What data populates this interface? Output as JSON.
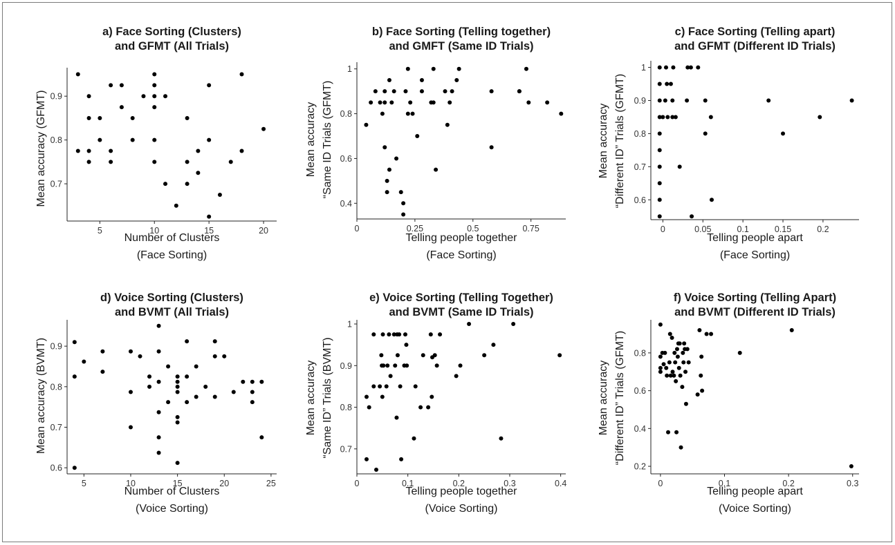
{
  "chart_data": [
    {
      "id": "a",
      "type": "scatter",
      "title": [
        "a) Face Sorting (Clusters)",
        "and GFMT (All Trials)"
      ],
      "xlabel": [
        "Number of Clusters",
        "(Face Sorting)"
      ],
      "ylabel": [
        "Mean accuracy (GFMT)"
      ],
      "xlim": [
        2,
        21.2
      ],
      "ylim": [
        0.615,
        0.965
      ],
      "xticks": [
        5,
        10,
        15,
        20
      ],
      "yticks": [
        0.7,
        0.8,
        0.9
      ],
      "tick_labels_x": [
        "5",
        "10",
        "15",
        "20"
      ],
      "tick_labels_y": [
        "0.7",
        "0.8",
        "0.9"
      ],
      "points": [
        [
          3,
          0.95
        ],
        [
          3,
          0.775
        ],
        [
          4,
          0.9
        ],
        [
          4,
          0.85
        ],
        [
          4,
          0.775
        ],
        [
          4,
          0.75
        ],
        [
          5,
          0.85
        ],
        [
          5,
          0.8
        ],
        [
          6,
          0.925
        ],
        [
          6,
          0.775
        ],
        [
          6,
          0.75
        ],
        [
          7,
          0.925
        ],
        [
          7,
          0.875
        ],
        [
          8,
          0.85
        ],
        [
          8,
          0.8
        ],
        [
          9,
          0.9
        ],
        [
          10,
          0.95
        ],
        [
          10,
          0.925
        ],
        [
          10,
          0.9
        ],
        [
          10,
          0.875
        ],
        [
          10,
          0.8
        ],
        [
          10,
          0.75
        ],
        [
          11,
          0.9
        ],
        [
          11,
          0.7
        ],
        [
          12,
          0.65
        ],
        [
          13,
          0.85
        ],
        [
          13,
          0.75
        ],
        [
          13,
          0.7
        ],
        [
          14,
          0.775
        ],
        [
          14,
          0.725
        ],
        [
          15,
          0.925
        ],
        [
          15,
          0.8
        ],
        [
          15,
          0.625
        ],
        [
          16,
          0.675
        ],
        [
          17,
          0.75
        ],
        [
          18,
          0.95
        ],
        [
          18,
          0.775
        ],
        [
          20,
          0.825
        ]
      ]
    },
    {
      "id": "b",
      "type": "scatter",
      "title": [
        "b) Face Sorting (Telling together)",
        "and GMFT (Same ID Trials)"
      ],
      "xlabel": [
        "Telling people together",
        "(Face Sorting)"
      ],
      "ylabel": [
        "Mean accuracy",
        "“Same ID Trials (GFMT)"
      ],
      "xlim": [
        0,
        0.9
      ],
      "ylim": [
        0.33,
        1.03
      ],
      "xticks": [
        0,
        0.25,
        0.5,
        0.75
      ],
      "yticks": [
        0.4,
        0.6,
        0.8,
        1.0
      ],
      "tick_labels_x": [
        "0",
        "0.25",
        "0.5",
        "0.75"
      ],
      "tick_labels_y": [
        "0.4",
        "0.6",
        "0.8",
        "1"
      ],
      "points": [
        [
          0.04,
          0.75
        ],
        [
          0.06,
          0.85
        ],
        [
          0.08,
          0.9
        ],
        [
          0.1,
          0.85
        ],
        [
          0.11,
          0.8
        ],
        [
          0.12,
          0.85
        ],
        [
          0.12,
          0.9
        ],
        [
          0.12,
          0.65
        ],
        [
          0.13,
          0.45
        ],
        [
          0.13,
          0.5
        ],
        [
          0.14,
          0.55
        ],
        [
          0.14,
          0.95
        ],
        [
          0.15,
          0.85
        ],
        [
          0.16,
          0.9
        ],
        [
          0.17,
          0.6
        ],
        [
          0.19,
          0.45
        ],
        [
          0.2,
          0.4
        ],
        [
          0.2,
          0.35
        ],
        [
          0.21,
          0.9
        ],
        [
          0.22,
          1.0
        ],
        [
          0.22,
          0.8
        ],
        [
          0.23,
          0.85
        ],
        [
          0.24,
          0.8
        ],
        [
          0.26,
          0.7
        ],
        [
          0.28,
          0.95
        ],
        [
          0.28,
          0.9
        ],
        [
          0.32,
          0.85
        ],
        [
          0.33,
          1.0
        ],
        [
          0.33,
          0.85
        ],
        [
          0.34,
          0.55
        ],
        [
          0.38,
          0.9
        ],
        [
          0.39,
          0.75
        ],
        [
          0.4,
          0.85
        ],
        [
          0.41,
          0.9
        ],
        [
          0.43,
          0.95
        ],
        [
          0.44,
          1.0
        ],
        [
          0.58,
          0.9
        ],
        [
          0.58,
          0.65
        ],
        [
          0.7,
          0.9
        ],
        [
          0.7,
          0.9
        ],
        [
          0.73,
          1.0
        ],
        [
          0.74,
          0.85
        ],
        [
          0.82,
          0.85
        ],
        [
          0.88,
          0.8
        ]
      ]
    },
    {
      "id": "c",
      "type": "scatter",
      "title": [
        "c) Face Sorting (Telling apart)",
        "and GFMT (Different ID Trials)"
      ],
      "xlabel": [
        "Telling people apart",
        "(Face Sorting)"
      ],
      "ylabel": [
        "Mean accuracy",
        "“Different ID” Trials (GFMT)"
      ],
      "xlim": [
        -0.015,
        0.245
      ],
      "ylim": [
        0.54,
        1.02
      ],
      "xticks": [
        0,
        0.05,
        0.1,
        0.15,
        0.2
      ],
      "yticks": [
        0.6,
        0.7,
        0.8,
        0.9,
        1.0
      ],
      "tick_labels_x": [
        "0",
        "0.05",
        "0.1",
        "0.15",
        "0.2"
      ],
      "tick_labels_y": [
        "0.6",
        "0.7",
        "0.8",
        "0.9",
        "1"
      ],
      "points": [
        [
          -0.004,
          1.0
        ],
        [
          -0.004,
          0.95
        ],
        [
          -0.004,
          0.9
        ],
        [
          -0.004,
          0.85
        ],
        [
          -0.004,
          0.8
        ],
        [
          -0.004,
          0.75
        ],
        [
          -0.004,
          0.7
        ],
        [
          -0.004,
          0.65
        ],
        [
          -0.004,
          0.6
        ],
        [
          -0.004,
          0.55
        ],
        [
          0,
          0.85
        ],
        [
          0.003,
          0.9
        ],
        [
          0.004,
          1.0
        ],
        [
          0.005,
          0.95
        ],
        [
          0.006,
          0.85
        ],
        [
          0.01,
          0.95
        ],
        [
          0.012,
          0.9
        ],
        [
          0.012,
          0.85
        ],
        [
          0.013,
          1.0
        ],
        [
          0.016,
          0.85
        ],
        [
          0.021,
          0.7
        ],
        [
          0.03,
          0.9
        ],
        [
          0.031,
          1.0
        ],
        [
          0.035,
          1.0
        ],
        [
          0.036,
          0.55
        ],
        [
          0.044,
          1.0
        ],
        [
          0.053,
          0.9
        ],
        [
          0.053,
          0.8
        ],
        [
          0.06,
          0.85
        ],
        [
          0.061,
          0.6
        ],
        [
          0.132,
          0.9
        ],
        [
          0.15,
          0.8
        ],
        [
          0.196,
          0.85
        ],
        [
          0.236,
          0.9
        ]
      ]
    },
    {
      "id": "d",
      "type": "scatter",
      "title": [
        "d) Voice Sorting (Clusters)",
        "and BVMT (All Trials)"
      ],
      "xlabel": [
        "Number of Clusters",
        "(Voice Sorting)"
      ],
      "ylabel": [
        "Mean accuracy (BVMT)"
      ],
      "xlim": [
        3.2,
        25.6
      ],
      "ylim": [
        0.585,
        0.965
      ],
      "xticks": [
        5,
        10,
        15,
        20,
        25
      ],
      "yticks": [
        0.6,
        0.7,
        0.8,
        0.9
      ],
      "tick_labels_x": [
        "5",
        "10",
        "15",
        "20",
        "25"
      ],
      "tick_labels_y": [
        "0.6",
        "0.7",
        "0.8",
        "0.9"
      ],
      "points": [
        [
          4,
          0.91
        ],
        [
          4,
          0.825
        ],
        [
          4,
          0.6
        ],
        [
          5,
          0.862
        ],
        [
          7,
          0.887
        ],
        [
          7,
          0.837
        ],
        [
          10,
          0.887
        ],
        [
          10,
          0.787
        ],
        [
          10,
          0.7
        ],
        [
          11,
          0.875
        ],
        [
          12,
          0.825
        ],
        [
          12,
          0.8
        ],
        [
          13,
          0.95
        ],
        [
          13,
          0.887
        ],
        [
          13,
          0.812
        ],
        [
          13,
          0.737
        ],
        [
          13,
          0.675
        ],
        [
          13,
          0.637
        ],
        [
          14,
          0.85
        ],
        [
          14,
          0.762
        ],
        [
          15,
          0.825
        ],
        [
          15,
          0.812
        ],
        [
          15,
          0.8
        ],
        [
          15,
          0.787
        ],
        [
          15,
          0.725
        ],
        [
          15,
          0.712
        ],
        [
          15,
          0.612
        ],
        [
          16,
          0.912
        ],
        [
          16,
          0.825
        ],
        [
          16,
          0.762
        ],
        [
          17,
          0.85
        ],
        [
          17,
          0.775
        ],
        [
          18,
          0.8
        ],
        [
          19,
          0.912
        ],
        [
          19,
          0.875
        ],
        [
          19,
          0.775
        ],
        [
          20,
          0.875
        ],
        [
          21,
          0.787
        ],
        [
          22,
          0.812
        ],
        [
          23,
          0.812
        ],
        [
          23,
          0.787
        ],
        [
          23,
          0.762
        ],
        [
          24,
          0.812
        ],
        [
          24,
          0.675
        ]
      ]
    },
    {
      "id": "e",
      "type": "scatter",
      "title": [
        "e) Voice Sorting (Telling Together)",
        "and BVMT (Same ID Trials)"
      ],
      "xlabel": [
        "Telling people together",
        "(Voice Sorting)"
      ],
      "ylabel": [
        "Mean accuracy",
        "“Same ID” Trials (BVMT)"
      ],
      "xlim": [
        0,
        0.41
      ],
      "ylim": [
        0.64,
        1.01
      ],
      "xticks": [
        0,
        0.1,
        0.2,
        0.3,
        0.4
      ],
      "yticks": [
        0.7,
        0.8,
        0.9,
        1.0
      ],
      "tick_labels_x": [
        "0",
        "0.1",
        "0.2",
        "0.3",
        "0.4"
      ],
      "tick_labels_y": [
        "0.7",
        "0.8",
        "0.9",
        "1"
      ],
      "points": [
        [
          0.019,
          0.825
        ],
        [
          0.019,
          0.675
        ],
        [
          0.024,
          0.8
        ],
        [
          0.033,
          0.975
        ],
        [
          0.033,
          0.85
        ],
        [
          0.038,
          0.65
        ],
        [
          0.045,
          0.85
        ],
        [
          0.048,
          0.925
        ],
        [
          0.049,
          0.9
        ],
        [
          0.05,
          0.825
        ],
        [
          0.051,
          0.975
        ],
        [
          0.052,
          0.9
        ],
        [
          0.058,
          0.85
        ],
        [
          0.06,
          0.9
        ],
        [
          0.063,
          0.975
        ],
        [
          0.066,
          0.875
        ],
        [
          0.073,
          0.975
        ],
        [
          0.075,
          0.9
        ],
        [
          0.078,
          0.775
        ],
        [
          0.079,
          0.975
        ],
        [
          0.08,
          0.925
        ],
        [
          0.083,
          0.975
        ],
        [
          0.085,
          0.85
        ],
        [
          0.087,
          0.675
        ],
        [
          0.093,
          0.9
        ],
        [
          0.095,
          0.975
        ],
        [
          0.097,
          0.95
        ],
        [
          0.098,
          0.9
        ],
        [
          0.112,
          0.725
        ],
        [
          0.115,
          0.85
        ],
        [
          0.125,
          0.8
        ],
        [
          0.13,
          0.925
        ],
        [
          0.14,
          0.8
        ],
        [
          0.145,
          0.975
        ],
        [
          0.147,
          0.825
        ],
        [
          0.148,
          0.92
        ],
        [
          0.153,
          0.925
        ],
        [
          0.157,
          0.9
        ],
        [
          0.163,
          0.975
        ],
        [
          0.195,
          0.875
        ],
        [
          0.203,
          0.9
        ],
        [
          0.22,
          1.0
        ],
        [
          0.25,
          0.925
        ],
        [
          0.268,
          0.95
        ],
        [
          0.283,
          0.725
        ],
        [
          0.307,
          1.0
        ],
        [
          0.398,
          0.925
        ]
      ]
    },
    {
      "id": "f",
      "type": "scatter",
      "title": [
        "f) Voice Sorting (Telling Apart)",
        "and BVMT (Different ID Trials)"
      ],
      "xlabel": [
        "Telling people apart",
        "(Voice Sorting)"
      ],
      "ylabel": [
        "Mean accuracy",
        "“Different ID” Trials (GFMT)"
      ],
      "xlim": [
        -0.015,
        0.31
      ],
      "ylim": [
        0.16,
        0.975
      ],
      "xticks": [
        0,
        0.1,
        0.2,
        0.3
      ],
      "yticks": [
        0.2,
        0.4,
        0.6,
        0.8
      ],
      "tick_labels_x": [
        "0",
        "0.1",
        "0.2",
        "0.3"
      ],
      "tick_labels_y": [
        "0.2",
        "0.4",
        "0.6",
        "0.8"
      ],
      "points": [
        [
          0,
          0.95
        ],
        [
          0,
          0.78
        ],
        [
          0,
          0.72
        ],
        [
          0,
          0.7
        ],
        [
          0.003,
          0.8
        ],
        [
          0.005,
          0.74
        ],
        [
          0.007,
          0.8
        ],
        [
          0.009,
          0.72
        ],
        [
          0.01,
          0.68
        ],
        [
          0.012,
          0.38
        ],
        [
          0.014,
          0.75
        ],
        [
          0.015,
          0.9
        ],
        [
          0.016,
          0.68
        ],
        [
          0.018,
          0.88
        ],
        [
          0.019,
          0.7
        ],
        [
          0.021,
          0.68
        ],
        [
          0.022,
          0.8
        ],
        [
          0.023,
          0.75
        ],
        [
          0.024,
          0.65
        ],
        [
          0.025,
          0.38
        ],
        [
          0.026,
          0.82
        ],
        [
          0.027,
          0.78
        ],
        [
          0.028,
          0.85
        ],
        [
          0.029,
          0.72
        ],
        [
          0.03,
          0.85
        ],
        [
          0.031,
          0.68
        ],
        [
          0.032,
          0.3
        ],
        [
          0.034,
          0.62
        ],
        [
          0.035,
          0.8
        ],
        [
          0.036,
          0.75
        ],
        [
          0.037,
          0.85
        ],
        [
          0.038,
          0.82
        ],
        [
          0.039,
          0.7
        ],
        [
          0.04,
          0.53
        ],
        [
          0.042,
          0.82
        ],
        [
          0.044,
          0.75
        ],
        [
          0.058,
          0.58
        ],
        [
          0.061,
          0.92
        ],
        [
          0.063,
          0.68
        ],
        [
          0.064,
          0.78
        ],
        [
          0.065,
          0.6
        ],
        [
          0.072,
          0.9
        ],
        [
          0.079,
          0.9
        ],
        [
          0.124,
          0.8
        ],
        [
          0.205,
          0.92
        ],
        [
          0.298,
          0.2
        ]
      ]
    }
  ]
}
